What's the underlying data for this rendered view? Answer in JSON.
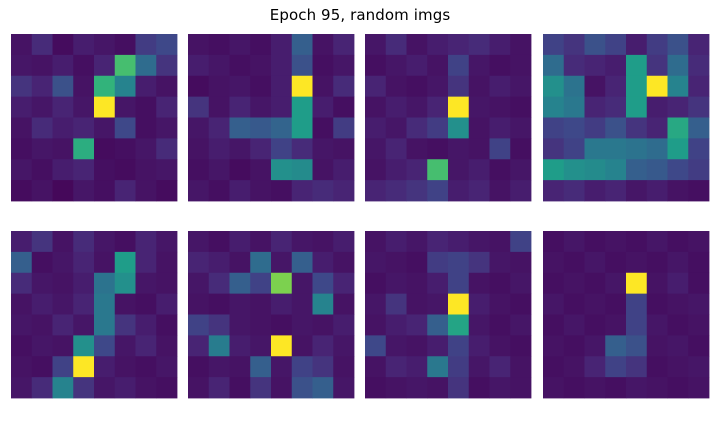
{
  "title": "Epoch 95, random imgs",
  "colormap": [
    "#440154",
    "#482878",
    "#3e4989",
    "#31688e",
    "#26828e",
    "#1f9e89",
    "#35b779",
    "#6ece58",
    "#b5de2b",
    "#fde725"
  ],
  "chart_data": [
    {
      "type": "heatmap",
      "rows": 8,
      "cols": 8,
      "vmin": 0,
      "vmax": 1,
      "values": [
        [
          0.05,
          0.12,
          0.03,
          0.08,
          0.06,
          0.04,
          0.18,
          0.22
        ],
        [
          0.06,
          0.05,
          0.08,
          0.04,
          0.1,
          0.7,
          0.35,
          0.15
        ],
        [
          0.15,
          0.1,
          0.25,
          0.05,
          0.65,
          0.45,
          0.08,
          0.05
        ],
        [
          0.08,
          0.06,
          0.1,
          0.06,
          1.0,
          0.06,
          0.04,
          0.1
        ],
        [
          0.05,
          0.12,
          0.08,
          0.1,
          0.06,
          0.22,
          0.04,
          0.06
        ],
        [
          0.04,
          0.06,
          0.05,
          0.62,
          0.03,
          0.04,
          0.06,
          0.12
        ],
        [
          0.06,
          0.04,
          0.08,
          0.1,
          0.04,
          0.03,
          0.05,
          0.06
        ],
        [
          0.03,
          0.05,
          0.02,
          0.06,
          0.04,
          0.1,
          0.05,
          0.03
        ]
      ]
    },
    {
      "type": "heatmap",
      "rows": 8,
      "cols": 8,
      "vmin": 0,
      "vmax": 1,
      "values": [
        [
          0.05,
          0.04,
          0.06,
          0.04,
          0.08,
          0.3,
          0.05,
          0.1
        ],
        [
          0.08,
          0.06,
          0.04,
          0.05,
          0.08,
          0.25,
          0.04,
          0.06
        ],
        [
          0.03,
          0.05,
          0.06,
          0.04,
          0.08,
          1.0,
          0.05,
          0.12
        ],
        [
          0.15,
          0.05,
          0.1,
          0.06,
          0.08,
          0.55,
          0.08,
          0.04
        ],
        [
          0.06,
          0.1,
          0.3,
          0.28,
          0.32,
          0.55,
          0.04,
          0.18
        ],
        [
          0.05,
          0.08,
          0.06,
          0.1,
          0.2,
          0.12,
          0.06,
          0.05
        ],
        [
          0.04,
          0.06,
          0.03,
          0.05,
          0.5,
          0.48,
          0.05,
          0.08
        ],
        [
          0.06,
          0.04,
          0.08,
          0.05,
          0.04,
          0.1,
          0.12,
          0.1
        ]
      ]
    },
    {
      "type": "heatmap",
      "rows": 8,
      "cols": 8,
      "vmin": 0,
      "vmax": 1,
      "values": [
        [
          0.06,
          0.12,
          0.05,
          0.08,
          0.1,
          0.12,
          0.08,
          0.05
        ],
        [
          0.04,
          0.06,
          0.08,
          0.05,
          0.2,
          0.06,
          0.04,
          0.05
        ],
        [
          0.1,
          0.05,
          0.04,
          0.06,
          0.15,
          0.05,
          0.08,
          0.06
        ],
        [
          0.05,
          0.08,
          0.06,
          0.1,
          1.0,
          0.06,
          0.05,
          0.04
        ],
        [
          0.08,
          0.06,
          0.12,
          0.18,
          0.5,
          0.05,
          0.08,
          0.06
        ],
        [
          0.06,
          0.1,
          0.05,
          0.04,
          0.06,
          0.05,
          0.2,
          0.04
        ],
        [
          0.05,
          0.08,
          0.1,
          0.7,
          0.06,
          0.08,
          0.04,
          0.06
        ],
        [
          0.1,
          0.12,
          0.15,
          0.2,
          0.08,
          0.1,
          0.05,
          0.08
        ]
      ]
    },
    {
      "type": "heatmap",
      "rows": 8,
      "cols": 8,
      "vmin": 0,
      "vmax": 1,
      "values": [
        [
          0.2,
          0.15,
          0.25,
          0.2,
          0.08,
          0.18,
          0.25,
          0.1
        ],
        [
          0.35,
          0.12,
          0.1,
          0.08,
          0.55,
          0.15,
          0.35,
          0.12
        ],
        [
          0.5,
          0.38,
          0.05,
          0.1,
          0.55,
          1.0,
          0.45,
          0.1
        ],
        [
          0.45,
          0.4,
          0.1,
          0.12,
          0.55,
          0.08,
          0.1,
          0.15
        ],
        [
          0.2,
          0.22,
          0.18,
          0.25,
          0.15,
          0.1,
          0.6,
          0.3
        ],
        [
          0.15,
          0.2,
          0.4,
          0.4,
          0.38,
          0.35,
          0.55,
          0.2
        ],
        [
          0.55,
          0.5,
          0.48,
          0.45,
          0.3,
          0.28,
          0.22,
          0.18
        ],
        [
          0.1,
          0.12,
          0.08,
          0.1,
          0.06,
          0.08,
          0.05,
          0.04
        ]
      ]
    },
    {
      "type": "heatmap",
      "rows": 8,
      "cols": 8,
      "vmin": 0,
      "vmax": 1,
      "values": [
        [
          0.08,
          0.15,
          0.05,
          0.12,
          0.06,
          0.04,
          0.1,
          0.06
        ],
        [
          0.3,
          0.04,
          0.06,
          0.1,
          0.05,
          0.55,
          0.1,
          0.05
        ],
        [
          0.12,
          0.06,
          0.05,
          0.08,
          0.38,
          0.5,
          0.06,
          0.05
        ],
        [
          0.05,
          0.08,
          0.06,
          0.1,
          0.4,
          0.05,
          0.04,
          0.08
        ],
        [
          0.06,
          0.05,
          0.1,
          0.06,
          0.4,
          0.15,
          0.08,
          0.04
        ],
        [
          0.04,
          0.06,
          0.05,
          0.5,
          0.22,
          0.06,
          0.1,
          0.05
        ],
        [
          0.05,
          0.04,
          0.2,
          1.0,
          0.08,
          0.05,
          0.04,
          0.06
        ],
        [
          0.06,
          0.12,
          0.45,
          0.15,
          0.06,
          0.08,
          0.05,
          0.04
        ]
      ]
    },
    {
      "type": "heatmap",
      "rows": 8,
      "cols": 8,
      "vmin": 0,
      "vmax": 1,
      "values": [
        [
          0.06,
          0.04,
          0.08,
          0.05,
          0.1,
          0.06,
          0.05,
          0.08
        ],
        [
          0.1,
          0.08,
          0.05,
          0.35,
          0.06,
          0.3,
          0.08,
          0.05
        ],
        [
          0.06,
          0.12,
          0.3,
          0.2,
          0.8,
          0.06,
          0.22,
          0.1
        ],
        [
          0.05,
          0.04,
          0.06,
          0.05,
          0.08,
          0.06,
          0.45,
          0.05
        ],
        [
          0.2,
          0.15,
          0.06,
          0.05,
          0.04,
          0.06,
          0.05,
          0.08
        ],
        [
          0.1,
          0.42,
          0.08,
          0.06,
          1.0,
          0.05,
          0.1,
          0.06
        ],
        [
          0.04,
          0.06,
          0.05,
          0.3,
          0.06,
          0.2,
          0.15,
          0.05
        ],
        [
          0.05,
          0.1,
          0.04,
          0.15,
          0.05,
          0.25,
          0.3,
          0.06
        ]
      ]
    },
    {
      "type": "heatmap",
      "rows": 8,
      "cols": 8,
      "vmin": 0,
      "vmax": 1,
      "values": [
        [
          0.05,
          0.08,
          0.06,
          0.1,
          0.08,
          0.06,
          0.05,
          0.2
        ],
        [
          0.06,
          0.05,
          0.04,
          0.18,
          0.2,
          0.15,
          0.06,
          0.05
        ],
        [
          0.04,
          0.06,
          0.05,
          0.08,
          0.2,
          0.05,
          0.04,
          0.06
        ],
        [
          0.06,
          0.15,
          0.05,
          0.06,
          1.0,
          0.08,
          0.05,
          0.04
        ],
        [
          0.05,
          0.08,
          0.1,
          0.3,
          0.58,
          0.06,
          0.04,
          0.06
        ],
        [
          0.22,
          0.06,
          0.05,
          0.08,
          0.2,
          0.08,
          0.05,
          0.04
        ],
        [
          0.05,
          0.1,
          0.08,
          0.4,
          0.18,
          0.06,
          0.1,
          0.05
        ],
        [
          0.04,
          0.05,
          0.06,
          0.05,
          0.15,
          0.04,
          0.06,
          0.05
        ]
      ]
    },
    {
      "type": "heatmap",
      "rows": 8,
      "cols": 8,
      "vmin": 0,
      "vmax": 1,
      "values": [
        [
          0.04,
          0.06,
          0.04,
          0.05,
          0.04,
          0.06,
          0.04,
          0.05
        ],
        [
          0.05,
          0.04,
          0.06,
          0.04,
          0.05,
          0.04,
          0.06,
          0.04
        ],
        [
          0.04,
          0.05,
          0.04,
          0.06,
          1.0,
          0.05,
          0.08,
          0.04
        ],
        [
          0.06,
          0.04,
          0.05,
          0.04,
          0.2,
          0.04,
          0.05,
          0.06
        ],
        [
          0.04,
          0.06,
          0.04,
          0.05,
          0.2,
          0.06,
          0.04,
          0.05
        ],
        [
          0.05,
          0.04,
          0.06,
          0.3,
          0.25,
          0.05,
          0.06,
          0.04
        ],
        [
          0.04,
          0.05,
          0.1,
          0.2,
          0.15,
          0.04,
          0.05,
          0.06
        ],
        [
          0.05,
          0.04,
          0.05,
          0.04,
          0.06,
          0.05,
          0.04,
          0.05
        ]
      ]
    }
  ]
}
